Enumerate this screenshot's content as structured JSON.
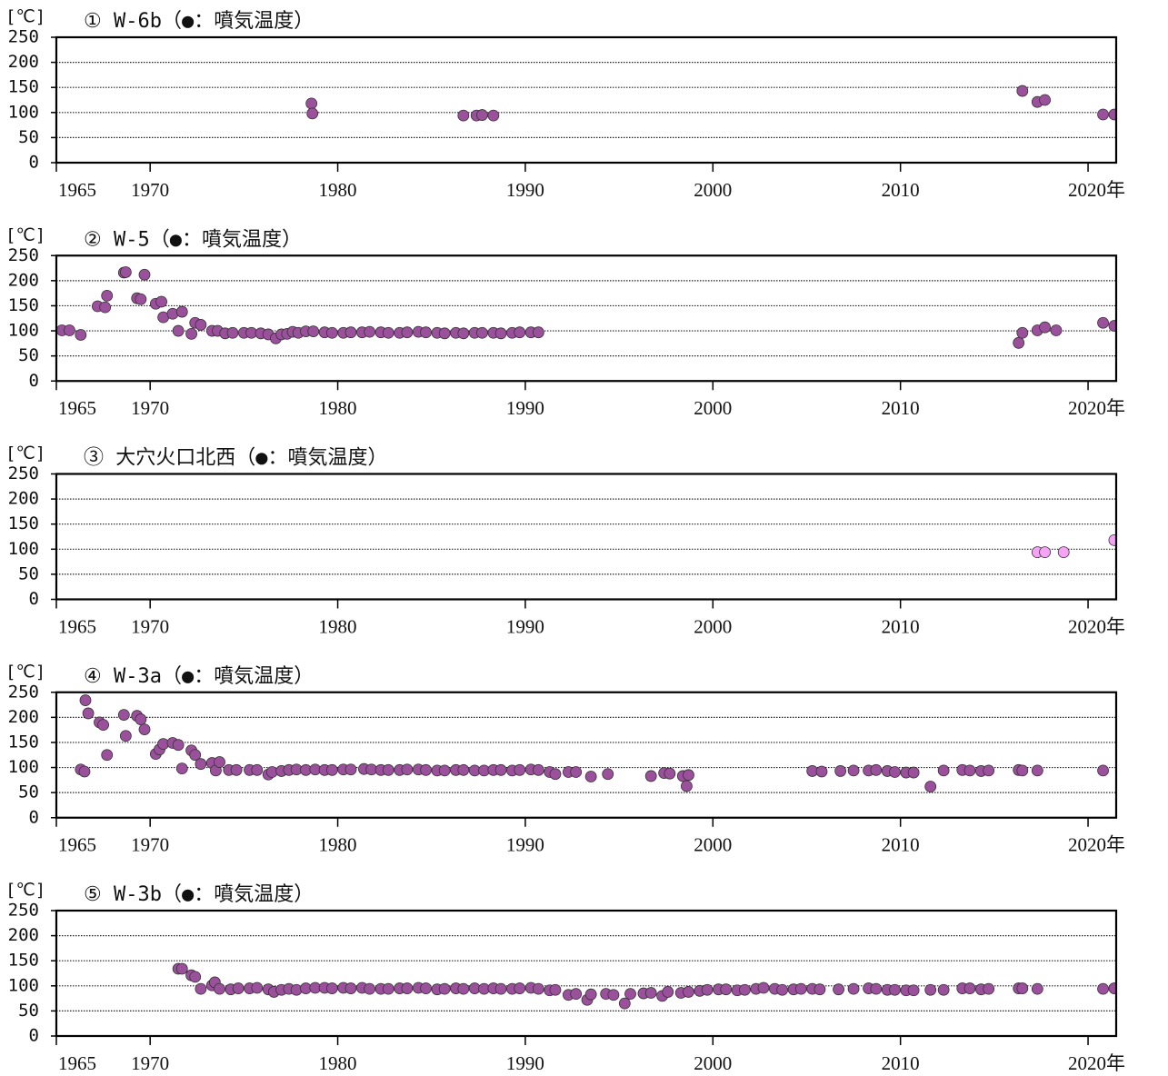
{
  "chart_data": [
    {
      "type": "scatter",
      "title": "① W-6b（●：噴気温度）",
      "y_label": "[℃]",
      "color": "#9b509b",
      "x": [
        1978.6,
        1978.65,
        1986.7,
        1987.4,
        1987.7,
        1988.3,
        2016.5,
        2017.3,
        2017.7,
        2020.8,
        2021.4
      ],
      "values": [
        118,
        98,
        94,
        94,
        95,
        94,
        143,
        121,
        125,
        96,
        96
      ],
      "xlim": [
        1965,
        2021.5
      ],
      "xticks": [
        1965,
        1970,
        1980,
        1990,
        2000,
        2010,
        {
          "value": 2020,
          "label": "2020年"
        }
      ],
      "ylim": [
        0,
        250
      ],
      "yticks": [
        0,
        50,
        100,
        150,
        200,
        250
      ],
      "grid": true
    },
    {
      "type": "scatter",
      "title": "② W-5（●：噴気温度）",
      "y_label": "[℃]",
      "color": "#9b509b",
      "x": [
        1965.3,
        1965.7,
        1966.3,
        1967.2,
        1967.6,
        1967.7,
        1968.6,
        1968.7,
        1969.3,
        1969.5,
        1969.7,
        1970.3,
        1970.6,
        1970.7,
        1971.2,
        1971.7,
        1971.5,
        1972.2,
        1972.4,
        1972.7,
        1973.3,
        1973.6,
        1974.0,
        1974.4,
        1975.0,
        1975.4,
        1975.9,
        1976.3,
        1976.7,
        1977.0,
        1977.3,
        1977.6,
        1977.9,
        1978.3,
        1978.7,
        1979.3,
        1979.7,
        1980.3,
        1980.7,
        1981.3,
        1981.7,
        1982.3,
        1982.7,
        1983.3,
        1983.7,
        1984.3,
        1984.7,
        1985.3,
        1985.7,
        1986.3,
        1986.7,
        1987.3,
        1987.7,
        1988.3,
        1988.7,
        1989.3,
        1989.7,
        1990.3,
        1990.7,
        2016.3,
        2016.5,
        2017.3,
        2017.7,
        2018.3,
        2020.8,
        2021.4
      ],
      "values": [
        101,
        101,
        92,
        149,
        147,
        170,
        216,
        217,
        165,
        163,
        212,
        154,
        158,
        127,
        134,
        138,
        100,
        94,
        116,
        112,
        100,
        100,
        95,
        96,
        96,
        96,
        95,
        93,
        85,
        93,
        94,
        98,
        96,
        99,
        99,
        97,
        96,
        96,
        97,
        97,
        98,
        97,
        96,
        96,
        97,
        98,
        97,
        96,
        95,
        96,
        95,
        96,
        96,
        96,
        95,
        96,
        97,
        97,
        97,
        76,
        96,
        101,
        107,
        101,
        116,
        110
      ],
      "xlim": [
        1965,
        2021.5
      ],
      "xticks": [
        1965,
        1970,
        1980,
        1990,
        2000,
        2010,
        {
          "value": 2020,
          "label": "2020年"
        }
      ],
      "ylim": [
        0,
        250
      ],
      "yticks": [
        0,
        50,
        100,
        150,
        200,
        250
      ],
      "grid": true
    },
    {
      "type": "scatter",
      "title": "③ 大穴火口北西（●：噴気温度）",
      "y_label": "[℃]",
      "color": "#f5a3f5",
      "x": [
        2017.3,
        2017.7,
        2018.7,
        2021.4
      ],
      "values": [
        94,
        94,
        94,
        118
      ],
      "xlim": [
        1965,
        2021.5
      ],
      "xticks": [
        1965,
        1970,
        1980,
        1990,
        2000,
        2010,
        {
          "value": 2020,
          "label": "2020年"
        }
      ],
      "ylim": [
        0,
        250
      ],
      "yticks": [
        0,
        50,
        100,
        150,
        200,
        250
      ],
      "grid": true
    },
    {
      "type": "scatter",
      "title": "④ W-3a（●：噴気温度）",
      "y_label": "[℃]",
      "color": "#9b509b",
      "x": [
        1966.3,
        1966.5,
        1966.55,
        1966.7,
        1967.3,
        1967.5,
        1967.7,
        1968.6,
        1968.7,
        1969.3,
        1969.5,
        1969.7,
        1970.3,
        1970.5,
        1970.7,
        1971.2,
        1971.5,
        1971.7,
        1972.2,
        1972.4,
        1972.7,
        1973.3,
        1973.5,
        1973.7,
        1974.2,
        1974.6,
        1975.3,
        1975.7,
        1976.3,
        1976.5,
        1977.0,
        1977.4,
        1977.8,
        1978.3,
        1978.8,
        1979.3,
        1979.7,
        1980.3,
        1980.7,
        1981.4,
        1981.8,
        1982.3,
        1982.7,
        1983.3,
        1983.7,
        1984.3,
        1984.7,
        1985.3,
        1985.7,
        1986.3,
        1986.7,
        1987.3,
        1987.8,
        1988.3,
        1988.7,
        1989.3,
        1989.7,
        1990.3,
        1990.7,
        1991.3,
        1991.6,
        1992.3,
        1992.7,
        1993.5,
        1994.4,
        1996.7,
        1997.4,
        1997.7,
        1998.4,
        1998.6,
        1998.7,
        2005.3,
        2005.8,
        2006.8,
        2007.5,
        2008.3,
        2008.7,
        2009.3,
        2009.7,
        2010.3,
        2010.7,
        2011.6,
        2012.3,
        2013.3,
        2013.7,
        2014.3,
        2014.7,
        2016.3,
        2016.5,
        2017.3,
        2020.8
      ],
      "values": [
        96,
        92,
        234,
        208,
        190,
        185,
        125,
        205,
        163,
        203,
        196,
        176,
        127,
        136,
        147,
        149,
        145,
        98,
        134,
        125,
        107,
        109,
        94,
        111,
        95,
        95,
        95,
        95,
        86,
        91,
        93,
        95,
        96,
        95,
        96,
        95,
        95,
        96,
        96,
        97,
        96,
        95,
        95,
        95,
        96,
        96,
        95,
        94,
        94,
        95,
        95,
        94,
        94,
        95,
        95,
        94,
        95,
        96,
        95,
        91,
        87,
        91,
        91,
        82,
        87,
        83,
        89,
        88,
        83,
        63,
        85,
        93,
        92,
        93,
        94,
        94,
        95,
        93,
        91,
        90,
        90,
        62,
        94,
        95,
        94,
        93,
        94,
        95,
        94,
        94,
        94
      ],
      "xlim": [
        1965,
        2021.5
      ],
      "xticks": [
        1965,
        1970,
        1980,
        1990,
        2000,
        2010,
        {
          "value": 2020,
          "label": "2020年"
        }
      ],
      "ylim": [
        0,
        250
      ],
      "yticks": [
        0,
        50,
        100,
        150,
        200,
        250
      ],
      "grid": true
    },
    {
      "type": "scatter",
      "title": "⑤ W-3b（●：噴気温度）",
      "y_label": "[℃]",
      "color": "#9b509b",
      "x": [
        1971.5,
        1971.7,
        1972.2,
        1972.4,
        1972.7,
        1973.3,
        1973.45,
        1973.7,
        1974.3,
        1974.7,
        1975.3,
        1975.7,
        1976.3,
        1976.6,
        1977.0,
        1977.4,
        1977.8,
        1978.3,
        1978.8,
        1979.3,
        1979.7,
        1980.3,
        1980.7,
        1981.3,
        1981.7,
        1982.3,
        1982.7,
        1983.3,
        1983.7,
        1984.3,
        1984.7,
        1985.3,
        1985.7,
        1986.3,
        1986.7,
        1987.3,
        1987.8,
        1988.3,
        1988.7,
        1989.3,
        1989.7,
        1990.3,
        1990.7,
        1991.3,
        1991.6,
        1992.3,
        1992.7,
        1993.3,
        1993.5,
        1994.3,
        1994.7,
        1995.3,
        1995.6,
        1996.3,
        1996.7,
        1997.3,
        1997.6,
        1998.3,
        1998.7,
        1999.3,
        1999.7,
        2000.3,
        2000.7,
        2001.3,
        2001.7,
        2002.3,
        2002.7,
        2003.3,
        2003.7,
        2004.3,
        2004.7,
        2005.3,
        2005.7,
        2006.7,
        2007.5,
        2008.3,
        2008.7,
        2009.3,
        2009.7,
        2010.3,
        2010.7,
        2011.6,
        2012.3,
        2013.3,
        2013.7,
        2014.3,
        2014.7,
        2016.3,
        2016.5,
        2017.3,
        2020.8,
        2021.4
      ],
      "values": [
        134,
        134,
        121,
        118,
        94,
        101,
        107,
        94,
        93,
        95,
        95,
        96,
        93,
        88,
        92,
        94,
        92,
        95,
        96,
        96,
        95,
        96,
        95,
        96,
        94,
        94,
        94,
        95,
        95,
        96,
        95,
        93,
        94,
        95,
        94,
        95,
        94,
        95,
        94,
        94,
        95,
        96,
        94,
        91,
        92,
        82,
        84,
        72,
        83,
        84,
        82,
        65,
        84,
        85,
        86,
        80,
        88,
        86,
        88,
        90,
        92,
        93,
        93,
        91,
        92,
        94,
        96,
        94,
        92,
        93,
        94,
        94,
        93,
        93,
        94,
        95,
        94,
        92,
        92,
        91,
        91,
        92,
        92,
        95,
        95,
        93,
        94,
        95,
        95,
        94,
        94,
        95
      ],
      "xlim": [
        1965,
        2021.5
      ],
      "xticks": [
        1965,
        1970,
        1980,
        1990,
        2000,
        2010,
        {
          "value": 2020,
          "label": "2020年"
        }
      ],
      "ylim": [
        0,
        250
      ],
      "yticks": [
        0,
        50,
        100,
        150,
        200,
        250
      ],
      "grid": true
    }
  ]
}
